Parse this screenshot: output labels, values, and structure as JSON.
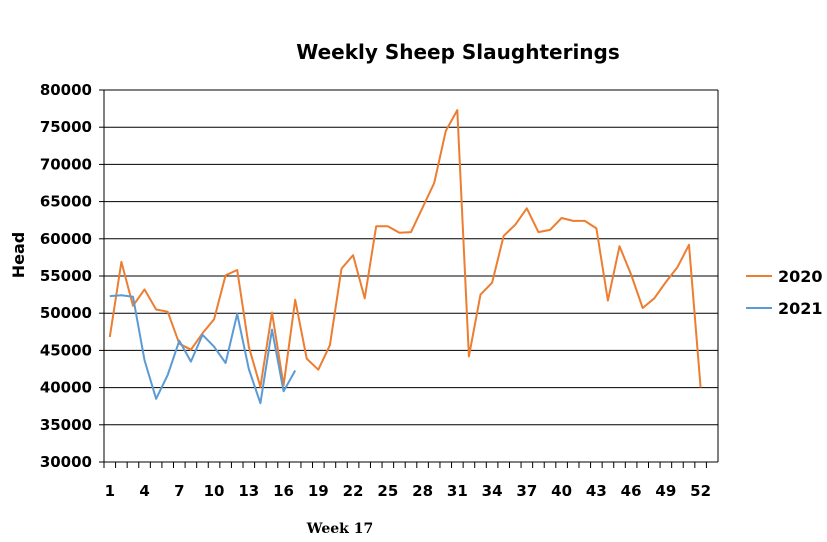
{
  "chart_data": {
    "type": "line",
    "title": "Weekly Sheep Slaughterings",
    "ylabel": "Head",
    "xlabel": "",
    "note": "Week 17",
    "ylim": [
      30000,
      80000
    ],
    "y_ticks": [
      30000,
      35000,
      40000,
      45000,
      50000,
      55000,
      60000,
      65000,
      70000,
      75000,
      80000
    ],
    "y_tick_labels": [
      "30000",
      "35000",
      "40000",
      "45000",
      "50000",
      "55000",
      "60000",
      "65000",
      "70000",
      "75000",
      "80000"
    ],
    "x_ticks": [
      1,
      4,
      7,
      10,
      13,
      16,
      19,
      22,
      25,
      28,
      31,
      34,
      37,
      40,
      43,
      46,
      49,
      52
    ],
    "x_tick_labels": [
      "1",
      "4",
      "7",
      "10",
      "13",
      "16",
      "19",
      "22",
      "25",
      "28",
      "31",
      "34",
      "37",
      "40",
      "43",
      "46",
      "49",
      "52"
    ],
    "grid": true,
    "legend_position": "right",
    "series": [
      {
        "name": "2020",
        "color": "#ED7D31",
        "x": [
          1,
          2,
          3,
          4,
          5,
          6,
          7,
          8,
          9,
          10,
          11,
          12,
          13,
          14,
          15,
          16,
          17,
          18,
          19,
          20,
          21,
          22,
          23,
          24,
          25,
          26,
          27,
          28,
          29,
          30,
          31,
          32,
          33,
          34,
          35,
          36,
          37,
          38,
          39,
          40,
          41,
          42,
          43,
          44,
          45,
          46,
          47,
          48,
          49,
          50,
          51,
          52
        ],
        "values": [
          46800,
          56900,
          51000,
          53200,
          50500,
          50200,
          45900,
          45100,
          47300,
          49200,
          55100,
          55800,
          45500,
          40100,
          50100,
          40300,
          51800,
          43900,
          42400,
          45700,
          56000,
          57800,
          52000,
          61700,
          61700,
          60800,
          60900,
          64200,
          67500,
          74500,
          77300,
          44200,
          52500,
          54100,
          60400,
          61900,
          64100,
          60900,
          61200,
          62800,
          62400,
          62400,
          61400,
          51700,
          59000,
          55200,
          50700,
          52000,
          54200,
          56200,
          59200,
          40000
        ]
      },
      {
        "name": "2021",
        "color": "#5B9BD5",
        "x": [
          1,
          2,
          3,
          4,
          5,
          6,
          7,
          8,
          9,
          10,
          11,
          12,
          13,
          14,
          15,
          16,
          17
        ],
        "values": [
          52300,
          52400,
          52200,
          43700,
          38500,
          41700,
          46300,
          43500,
          47100,
          45500,
          43300,
          49900,
          42500,
          37900,
          47800,
          39500,
          42300
        ]
      }
    ]
  }
}
